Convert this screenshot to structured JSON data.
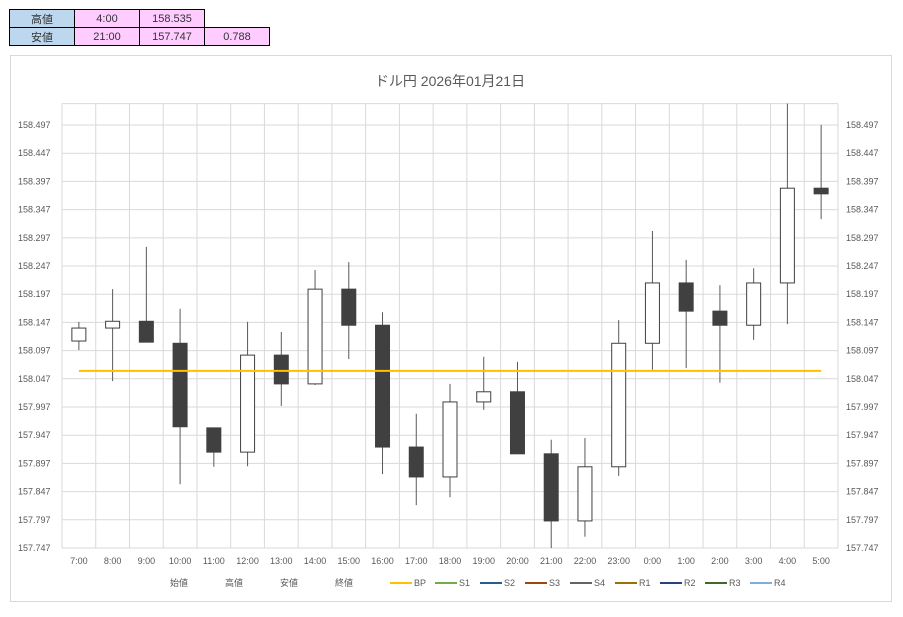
{
  "summary": {
    "high": {
      "label": "高値",
      "time": "4:00",
      "price": "158.535"
    },
    "low": {
      "label": "安値",
      "time": "21:00",
      "price": "157.747",
      "range": "0.788"
    }
  },
  "chart_data": {
    "type": "candlestick",
    "title": "ドル円  2026年01月21日",
    "categories": [
      "7:00",
      "8:00",
      "9:00",
      "10:00",
      "11:00",
      "12:00",
      "13:00",
      "14:00",
      "15:00",
      "16:00",
      "17:00",
      "18:00",
      "19:00",
      "20:00",
      "21:00",
      "22:00",
      "23:00",
      "0:00",
      "1:00",
      "2:00",
      "3:00",
      "4:00",
      "5:00"
    ],
    "open": [
      158.114,
      158.137,
      158.149,
      158.11,
      157.96,
      157.917,
      158.089,
      158.038,
      158.206,
      158.142,
      157.926,
      157.873,
      158.006,
      158.024,
      157.914,
      157.795,
      157.891,
      158.11,
      158.217,
      158.167,
      158.142,
      158.217,
      158.385
    ],
    "high": [
      158.148,
      158.206,
      158.281,
      158.171,
      157.96,
      158.148,
      158.13,
      158.24,
      158.254,
      158.165,
      157.985,
      158.038,
      158.086,
      158.077,
      157.939,
      157.942,
      158.151,
      158.309,
      158.258,
      158.213,
      158.243,
      158.535,
      158.497
    ],
    "low": [
      158.098,
      158.043,
      158.112,
      157.86,
      157.891,
      157.892,
      157.999,
      158.036,
      158.082,
      157.878,
      157.823,
      157.837,
      157.992,
      157.914,
      157.747,
      157.767,
      157.875,
      158.063,
      158.066,
      158.04,
      158.116,
      158.144,
      158.33
    ],
    "close": [
      158.137,
      158.149,
      158.112,
      157.962,
      157.917,
      158.089,
      158.038,
      158.206,
      158.142,
      157.926,
      157.873,
      158.006,
      158.024,
      157.914,
      157.795,
      157.891,
      158.11,
      158.217,
      158.167,
      158.142,
      158.217,
      158.385,
      158.375
    ],
    "bp": 158.061,
    "ylim": [
      157.747,
      158.535
    ],
    "yticks": [
      "157.747",
      "157.797",
      "157.847",
      "157.897",
      "157.947",
      "157.997",
      "158.047",
      "158.097",
      "158.147",
      "158.197",
      "158.247",
      "158.297",
      "158.347",
      "158.397",
      "158.447",
      "158.497"
    ],
    "legend": [
      {
        "name": "始値",
        "color": null
      },
      {
        "name": "高値",
        "color": null
      },
      {
        "name": "安値",
        "color": null
      },
      {
        "name": "終値",
        "color": null
      },
      {
        "name": "BP",
        "color": "#FFC000"
      },
      {
        "name": "S1",
        "color": "#70AD47"
      },
      {
        "name": "S2",
        "color": "#255E91"
      },
      {
        "name": "S3",
        "color": "#9E480E"
      },
      {
        "name": "S4",
        "color": "#636363"
      },
      {
        "name": "R1",
        "color": "#997300"
      },
      {
        "name": "R2",
        "color": "#264478"
      },
      {
        "name": "R3",
        "color": "#43682B"
      },
      {
        "name": "R4",
        "color": "#7CAFDD"
      }
    ],
    "legend_position": "bottom",
    "grid": true
  }
}
